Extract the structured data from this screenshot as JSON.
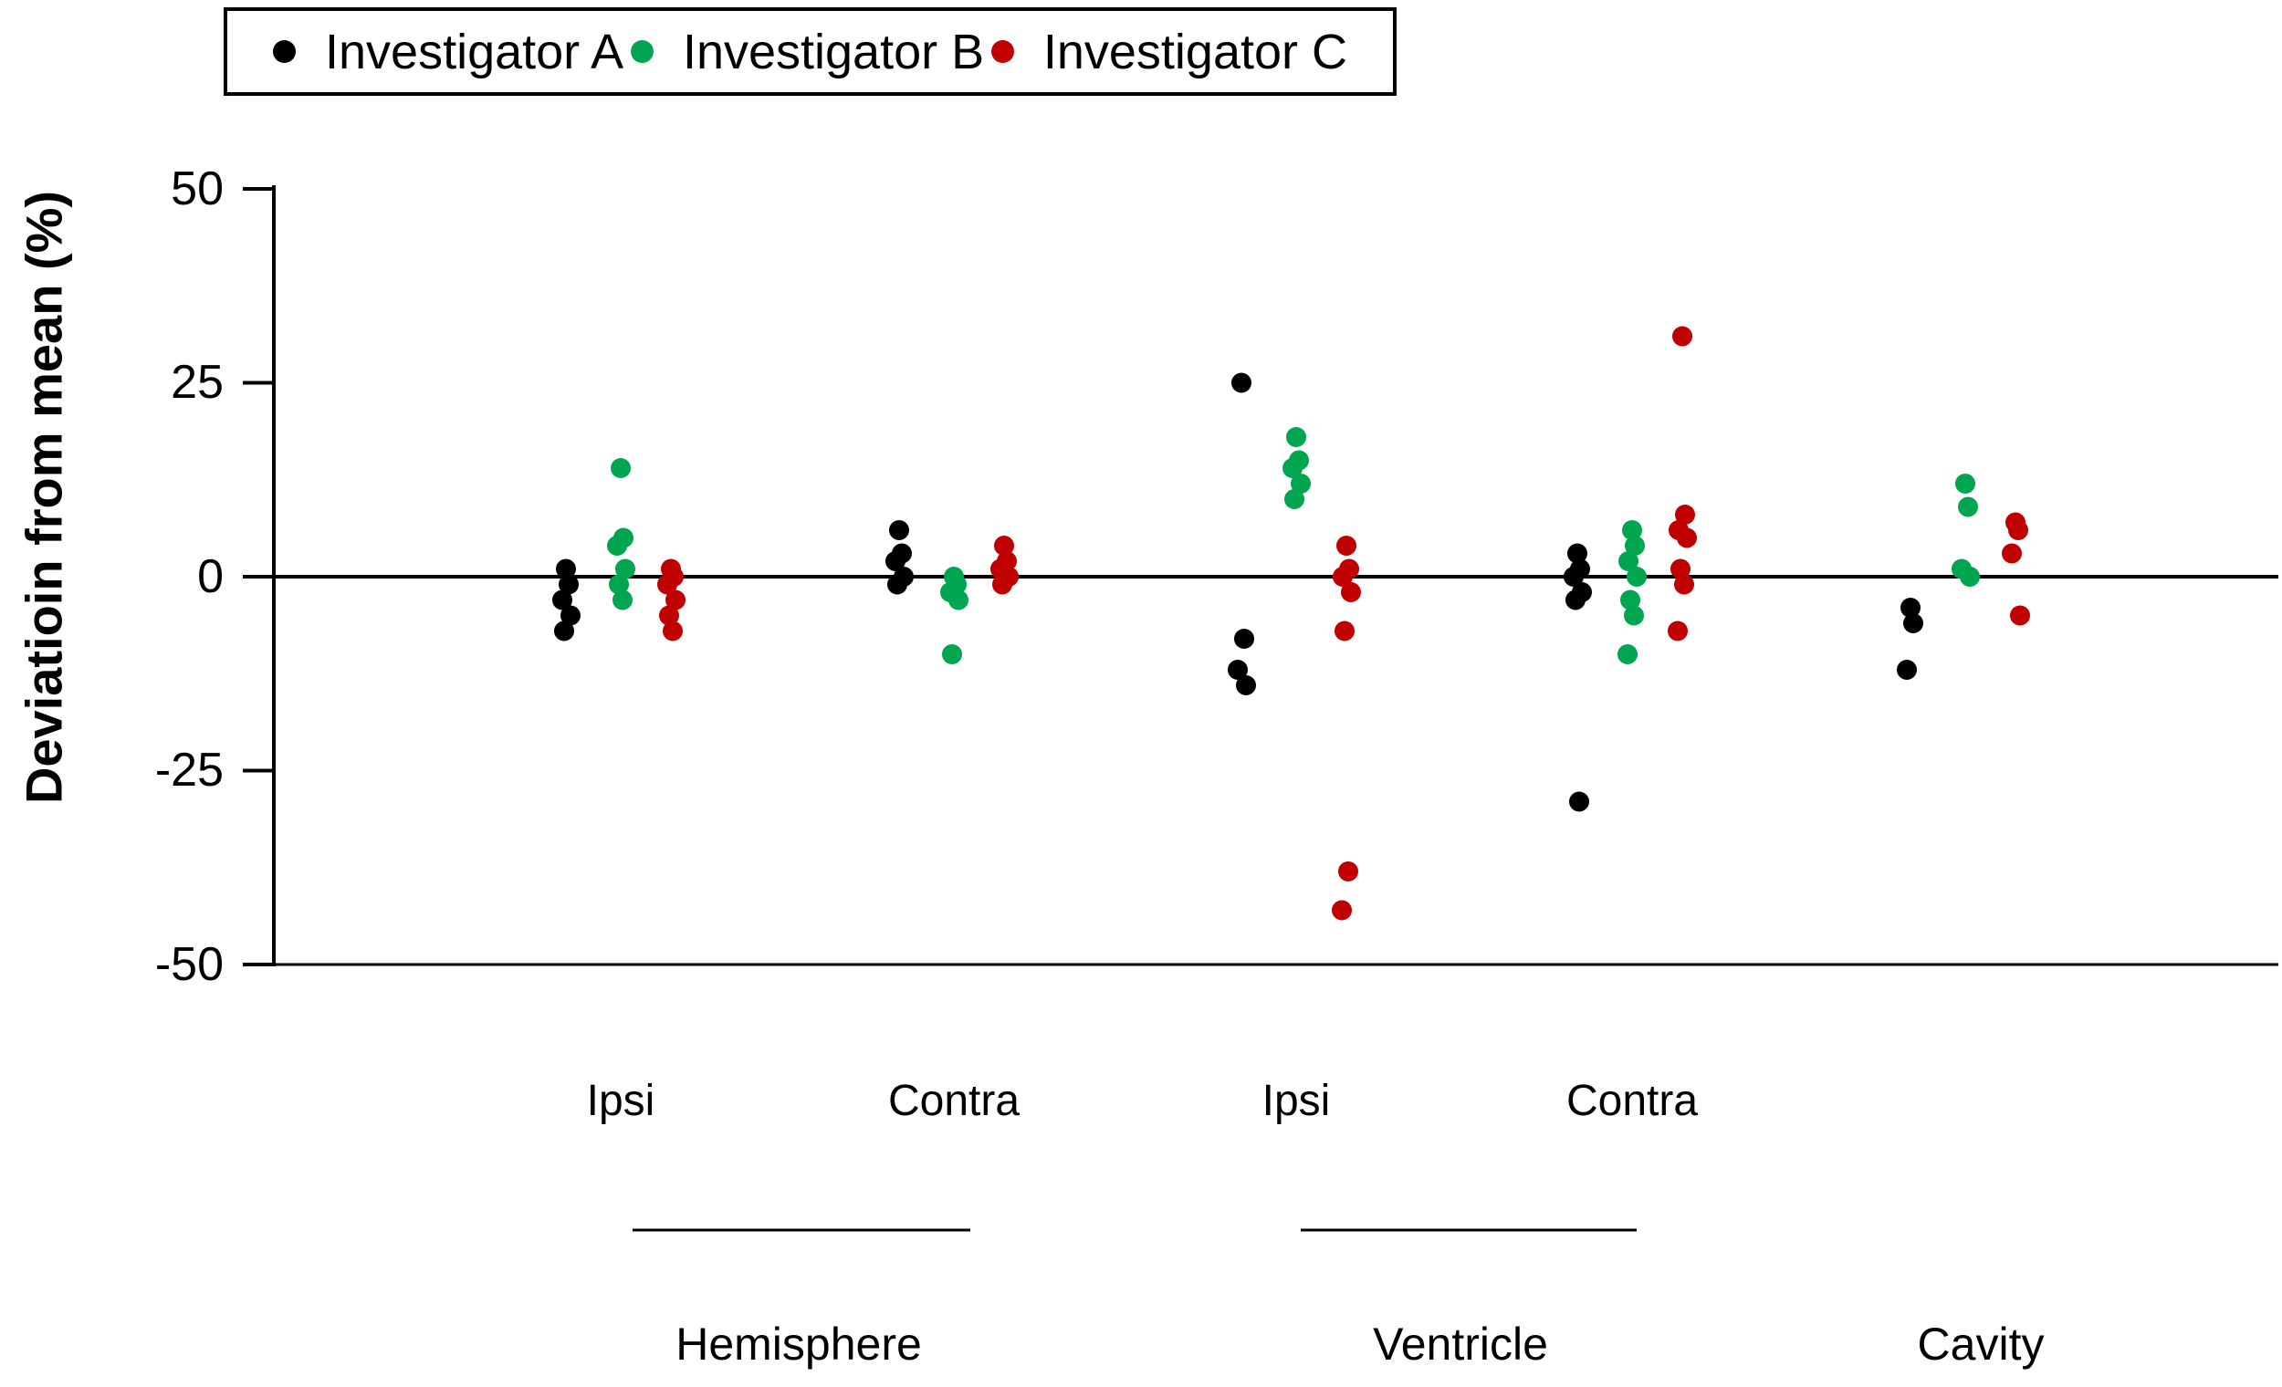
{
  "figure": {
    "background": "#ffffff"
  },
  "chart_data": {
    "type": "scatter",
    "title": "",
    "xlabel": "",
    "ylabel": "Deviatioin from mean (%)",
    "ylim": [
      -50,
      50
    ],
    "y_ticks": [
      50,
      25,
      0,
      -25,
      -50
    ],
    "grid": false,
    "zero_line": true,
    "legend_position": "top",
    "groups": [
      "Hemisphere Ipsi",
      "Hemisphere Contra",
      "Ventricle Ipsi",
      "Ventricle Contra",
      "Cavity"
    ],
    "category_labels": [
      "Ipsi",
      "Contra",
      "Ipsi",
      "Contra"
    ],
    "section_labels": [
      "Hemisphere",
      "Ventricle",
      "Cavity"
    ],
    "series": [
      {
        "name": "Investigator A",
        "color": "#000000",
        "values": [
          [
            1,
            -1,
            -3,
            -5,
            -7
          ],
          [
            6,
            3,
            2,
            0,
            -1
          ],
          [
            25,
            -8,
            -12,
            -14
          ],
          [
            3,
            1,
            0,
            -2,
            -3,
            -29
          ],
          [
            -4,
            -6,
            -12
          ]
        ]
      },
      {
        "name": "Investigator B",
        "color": "#00a550",
        "values": [
          [
            14,
            5,
            4,
            1,
            -1,
            -3
          ],
          [
            0,
            -1,
            -2,
            -3,
            -10
          ],
          [
            18,
            15,
            14,
            12,
            10
          ],
          [
            6,
            4,
            2,
            0,
            -3,
            -5,
            -10
          ],
          [
            12,
            9,
            1,
            0
          ]
        ]
      },
      {
        "name": "Investigator C",
        "color": "#c00000",
        "values": [
          [
            1,
            0,
            -1,
            -3,
            -5,
            -7
          ],
          [
            4,
            2,
            1,
            0,
            -1
          ],
          [
            4,
            1,
            0,
            -2,
            -7,
            -38,
            -43
          ],
          [
            31,
            8,
            6,
            5,
            1,
            -1,
            -7
          ],
          [
            7,
            6,
            3,
            -5
          ]
        ]
      }
    ]
  }
}
